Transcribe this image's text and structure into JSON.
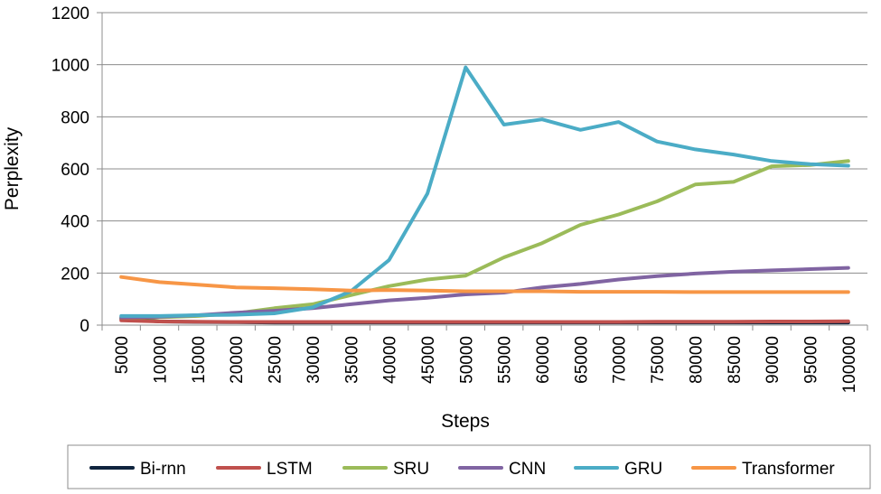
{
  "chart_data": {
    "type": "line",
    "title": "",
    "xlabel": "Steps",
    "ylabel": "Perplexity",
    "ylim": [
      0,
      1200
    ],
    "yticks": [
      0,
      200,
      400,
      600,
      800,
      1000,
      1200
    ],
    "grid": "horizontal",
    "legend_position": "bottom",
    "categories": [
      "5000",
      "10000",
      "15000",
      "20000",
      "25000",
      "30000",
      "35000",
      "40000",
      "45000",
      "50000",
      "55000",
      "60000",
      "65000",
      "70000",
      "75000",
      "80000",
      "85000",
      "90000",
      "95000",
      "100000"
    ],
    "series": [
      {
        "name": "Bi-rnn",
        "color": "#0f243e",
        "values": [
          25,
          14,
          12,
          11,
          10,
          10,
          10,
          10,
          10,
          10,
          10,
          10,
          10,
          10,
          10,
          10,
          10,
          10,
          10,
          10
        ]
      },
      {
        "name": "LSTM",
        "color": "#c0504d",
        "values": [
          18,
          14,
          13,
          12,
          12,
          12,
          12,
          12,
          12,
          12,
          12,
          12,
          12,
          12,
          13,
          13,
          13,
          14,
          14,
          15
        ]
      },
      {
        "name": "SRU",
        "color": "#9bbb59",
        "values": [
          30,
          30,
          35,
          45,
          65,
          80,
          115,
          150,
          175,
          190,
          260,
          315,
          385,
          425,
          475,
          540,
          550,
          610,
          615,
          630
        ]
      },
      {
        "name": "CNN",
        "color": "#8064a2",
        "values": [
          30,
          32,
          38,
          48,
          55,
          65,
          80,
          95,
          105,
          118,
          125,
          145,
          158,
          175,
          188,
          198,
          205,
          210,
          215,
          220
        ]
      },
      {
        "name": "GRU",
        "color": "#4bacc6",
        "values": [
          35,
          35,
          38,
          40,
          45,
          68,
          130,
          250,
          505,
          990,
          770,
          790,
          750,
          780,
          705,
          675,
          655,
          630,
          618,
          612
        ]
      },
      {
        "name": "Transformer",
        "color": "#f79646",
        "values": [
          185,
          165,
          155,
          145,
          142,
          138,
          133,
          135,
          133,
          130,
          130,
          130,
          128,
          128,
          128,
          127,
          127,
          127,
          127,
          127
        ]
      }
    ]
  }
}
